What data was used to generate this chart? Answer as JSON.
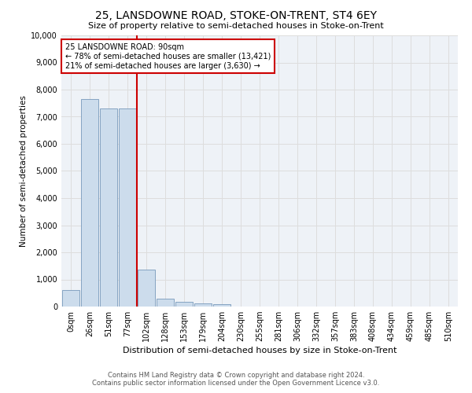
{
  "title": "25, LANSDOWNE ROAD, STOKE-ON-TRENT, ST4 6EY",
  "subtitle": "Size of property relative to semi-detached houses in Stoke-on-Trent",
  "xlabel": "Distribution of semi-detached houses by size in Stoke-on-Trent",
  "ylabel": "Number of semi-detached properties",
  "footer1": "Contains HM Land Registry data © Crown copyright and database right 2024.",
  "footer2": "Contains public sector information licensed under the Open Government Licence v3.0.",
  "bar_labels": [
    "0sqm",
    "26sqm",
    "51sqm",
    "77sqm",
    "102sqm",
    "128sqm",
    "153sqm",
    "179sqm",
    "204sqm",
    "230sqm",
    "255sqm",
    "281sqm",
    "306sqm",
    "332sqm",
    "357sqm",
    "383sqm",
    "408sqm",
    "434sqm",
    "459sqm",
    "485sqm",
    "510sqm"
  ],
  "bar_values": [
    600,
    7650,
    7300,
    7300,
    1350,
    300,
    160,
    110,
    85,
    0,
    0,
    0,
    0,
    0,
    0,
    0,
    0,
    0,
    0,
    0,
    0
  ],
  "bar_color": "#ccdcec",
  "bar_edge_color": "#7799bb",
  "grid_color": "#dddddd",
  "bg_color": "#eef2f7",
  "vline_x": 3.5,
  "vline_color": "#cc0000",
  "annotation_title": "25 LANSDOWNE ROAD: 90sqm",
  "annotation_line1": "← 78% of semi-detached houses are smaller (13,421)",
  "annotation_line2": "21% of semi-detached houses are larger (3,630) →",
  "annotation_box_color": "#cc0000",
  "ylim": [
    0,
    10000
  ],
  "yticks": [
    0,
    1000,
    2000,
    3000,
    4000,
    5000,
    6000,
    7000,
    8000,
    9000,
    10000
  ]
}
